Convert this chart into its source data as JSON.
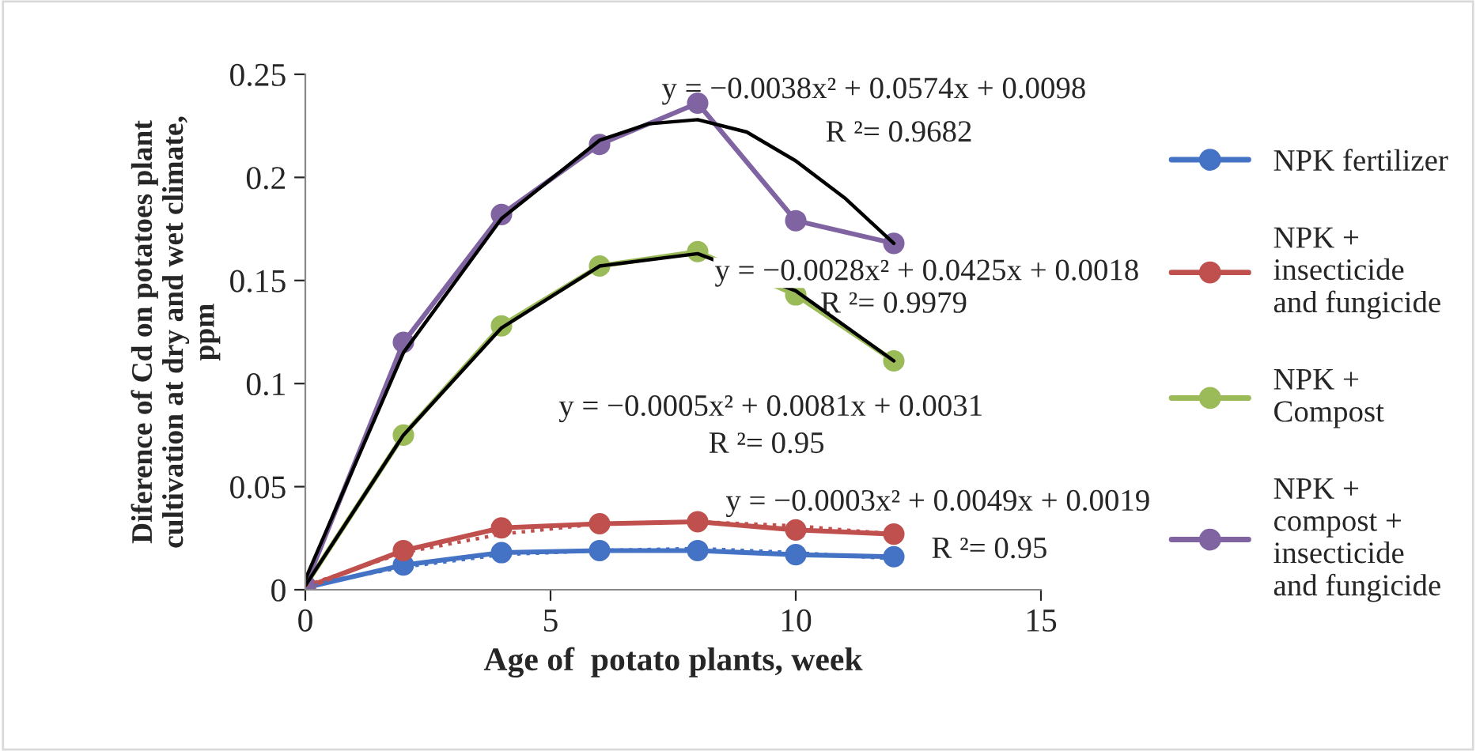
{
  "chart_data": {
    "type": "line",
    "xlabel": "Age of  potato plants, week",
    "ylabel": "Diference of Cd on potatoes plant\ncultivation at dry and wet climate,\nppm",
    "xlim": [
      0,
      15
    ],
    "xticks": [
      0,
      5,
      10,
      15
    ],
    "ylim": [
      0,
      0.25
    ],
    "yticks": [
      0,
      0.05,
      0.1,
      0.15,
      0.2,
      0.25
    ],
    "grid": false,
    "legend": "right",
    "marker": "circle",
    "line_style": "solid",
    "series": [
      {
        "name": "NPK fertilizer",
        "color": "#4472c4",
        "x": [
          0,
          2,
          4,
          6,
          8,
          10,
          12
        ],
        "values": [
          0.001,
          0.012,
          0.018,
          0.019,
          0.019,
          0.017,
          0.016
        ]
      },
      {
        "name": "NPK +\ninsecticide\nand fungicide",
        "color": "#c0504d",
        "x": [
          0,
          2,
          4,
          6,
          8,
          10,
          12
        ],
        "values": [
          0.001,
          0.019,
          0.03,
          0.032,
          0.033,
          0.029,
          0.027
        ]
      },
      {
        "name": "NPK +\nCompost",
        "color": "#9bbb59",
        "x": [
          0,
          2,
          4,
          6,
          8,
          10,
          12
        ],
        "values": [
          0.002,
          0.075,
          0.128,
          0.157,
          0.164,
          0.143,
          0.111
        ]
      },
      {
        "name": "NPK +\ncompost +\ninsecticide\nand fungicide",
        "color": "#8064a2",
        "x": [
          0,
          2,
          4,
          6,
          8,
          10,
          12
        ],
        "values": [
          0.002,
          0.12,
          0.182,
          0.216,
          0.236,
          0.179,
          0.168
        ]
      },
      {
        "color": "#4472c4",
        "marker": "none",
        "line_style": "dotted",
        "x": [
          0,
          2,
          4,
          6,
          8,
          10,
          12
        ],
        "values": [
          0.002,
          0.011,
          0.017,
          0.019,
          0.02,
          0.018,
          0.015
        ]
      },
      {
        "color": "#c0504d",
        "marker": "none",
        "line_style": "dotted",
        "x": [
          0,
          2,
          4,
          6,
          8,
          10,
          12
        ],
        "values": [
          0.002,
          0.018,
          0.027,
          0.032,
          0.033,
          0.031,
          0.027
        ]
      },
      {
        "color": "#000000",
        "marker": "none",
        "line_style": "solid",
        "x": [
          0,
          2,
          4,
          6,
          8,
          10,
          12
        ],
        "values": [
          0.002,
          0.075,
          0.127,
          0.157,
          0.163,
          0.145,
          0.111
        ]
      },
      {
        "color": "#000000",
        "marker": "none",
        "line_style": "solid",
        "x": [
          0,
          2,
          4,
          6,
          7,
          8,
          9,
          10,
          11,
          12
        ],
        "values": [
          0.005,
          0.115,
          0.18,
          0.218,
          0.226,
          0.228,
          0.222,
          0.208,
          0.19,
          0.168
        ]
      }
    ],
    "annotations": [
      "y = −0.0038x² + 0.0574x + 0.0098",
      "R ²= 0.9682",
      "y = −0.0028x² + 0.0425x + 0.0018",
      "R ²= 0.9979",
      "y = −0.0005x² + 0.0081x + 0.0031",
      "R ²= 0.95",
      "y = −0.0003x² + 0.0049x + 0.0019",
      "R ²= 0.95"
    ]
  }
}
